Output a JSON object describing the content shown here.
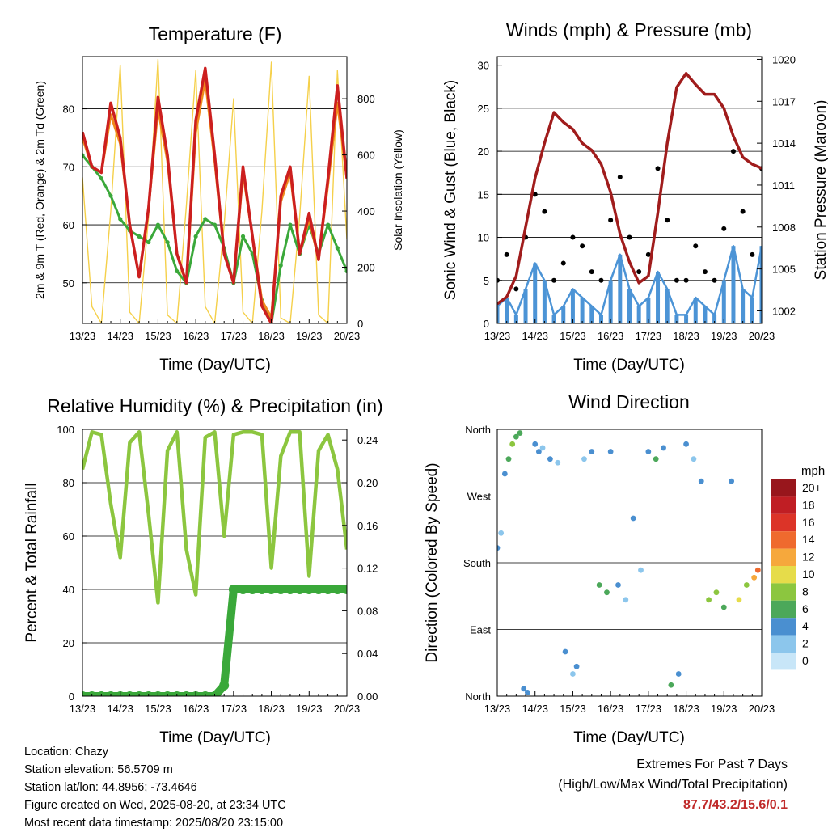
{
  "colors": {
    "temp_2m": "#cc1f1f",
    "temp_9m": "#f08a1c",
    "dewpoint": "#3aa83a",
    "solar": "#f5d04a",
    "sonic_wind": "#4c94d6",
    "gust": "#000000",
    "pressure": "#a01c1c",
    "rh": "#8cc63f",
    "precip": "#3aa83a",
    "extremes": "#c02a2a"
  },
  "x_ticks": [
    "13/23",
    "14/23",
    "15/23",
    "16/23",
    "17/23",
    "18/23",
    "19/23",
    "20/23"
  ],
  "panels": {
    "temperature": {
      "title": "Temperature (F)",
      "xlabel": "Time (Day/UTC)",
      "ylabel": "2m & 9m T (Red, Orange) & 2m Td (Green)",
      "ylabel_right": "Solar Insolation (Yellow)"
    },
    "winds": {
      "title": "Winds (mph) & Pressure (mb)",
      "xlabel": "Time (Day/UTC)",
      "ylabel": "Sonic Wind & Gust (Blue, Black)",
      "ylabel_right": "Station Pressure (Maroon)"
    },
    "humidity": {
      "title": "Relative Humidity (%) & Precipitation (in)",
      "xlabel": "Time (Day/UTC)",
      "ylabel": "Percent & Total Rainfall"
    },
    "direction": {
      "title": "Wind Direction",
      "xlabel": "Time (Day/UTC)",
      "ylabel": "Direction (Colored By Speed)",
      "colorbar_title": "mph"
    }
  },
  "chart_data": [
    {
      "type": "line",
      "title": "Temperature (F)",
      "xlabel": "Time (Day/UTC)",
      "ylabel": "2m & 9m T (Red, Orange) & 2m Td (Green)",
      "ylabel_right": "Solar Insolation (Yellow)",
      "x": [
        13.0,
        13.25,
        13.5,
        13.75,
        14.0,
        14.25,
        14.5,
        14.75,
        15.0,
        15.25,
        15.5,
        15.75,
        16.0,
        16.25,
        16.5,
        16.75,
        17.0,
        17.25,
        17.5,
        17.75,
        18.0,
        18.25,
        18.5,
        18.75,
        19.0,
        19.25,
        19.5,
        19.75,
        20.0
      ],
      "ylim": [
        43,
        89
      ],
      "yticks": [
        50,
        60,
        70,
        80
      ],
      "ylim_right": [
        0,
        950
      ],
      "yticks_right": [
        0,
        200,
        400,
        600,
        800
      ],
      "grid": true,
      "series": [
        {
          "axis": "left",
          "values": [
            76,
            70,
            69,
            81,
            75,
            60,
            51,
            63,
            82,
            72,
            55,
            50,
            78,
            87,
            72,
            55,
            50,
            70,
            58,
            46,
            43,
            65,
            70,
            55,
            62,
            54,
            68,
            84,
            68
          ]
        },
        {
          "axis": "left",
          "values": [
            75,
            70,
            69,
            79,
            74,
            60,
            51,
            63,
            80,
            71,
            55,
            50,
            76,
            85,
            71,
            55,
            50,
            69,
            58,
            47,
            44,
            64,
            69,
            55,
            61,
            54,
            67,
            81,
            68
          ]
        },
        {
          "axis": "left",
          "values": [
            72,
            70,
            68,
            65,
            61,
            59,
            58,
            57,
            60,
            57,
            52,
            50,
            58,
            61,
            60,
            56,
            50,
            58,
            55,
            47,
            43,
            53,
            60,
            55,
            60,
            55,
            60,
            56,
            52
          ]
        },
        {
          "axis": "right",
          "values": [
            520,
            60,
            0,
            400,
            920,
            40,
            0,
            380,
            940,
            30,
            0,
            420,
            900,
            60,
            0,
            350,
            800,
            40,
            0,
            400,
            930,
            20,
            0,
            380,
            880,
            30,
            0,
            900,
            300
          ]
        }
      ]
    },
    {
      "type": "scatter",
      "title": "Winds (mph) & Pressure (mb)",
      "xlabel": "Time (Day/UTC)",
      "ylabel": "Sonic Wind & Gust (Blue, Black)",
      "ylabel_right": "Station Pressure (Maroon)",
      "x": [
        13.0,
        13.25,
        13.5,
        13.75,
        14.0,
        14.25,
        14.5,
        14.75,
        15.0,
        15.25,
        15.5,
        15.75,
        16.0,
        16.25,
        16.5,
        16.75,
        17.0,
        17.25,
        17.5,
        17.75,
        18.0,
        18.25,
        18.5,
        18.75,
        19.0,
        19.25,
        19.5,
        19.75,
        20.0
      ],
      "ylim": [
        0,
        31
      ],
      "yticks": [
        0,
        5,
        10,
        15,
        20,
        25,
        30
      ],
      "ylim_right": [
        1001.1,
        1020.2
      ],
      "yticks_right": [
        1002,
        1005,
        1008,
        1011,
        1014,
        1017,
        1020
      ],
      "grid": true,
      "series": [
        {
          "axis": "left",
          "values": [
            2,
            3,
            1,
            4,
            7,
            5,
            1,
            2,
            4,
            3,
            2,
            1,
            5,
            8,
            4,
            2,
            3,
            6,
            4,
            1,
            1,
            3,
            2,
            1,
            5,
            9,
            4,
            3,
            9
          ]
        },
        {
          "axis": "left",
          "values": [
            5,
            8,
            4,
            10,
            15,
            13,
            5,
            7,
            10,
            9,
            6,
            5,
            12,
            17,
            10,
            6,
            8,
            18,
            12,
            5,
            5,
            9,
            6,
            5,
            11,
            20,
            13,
            8,
            18
          ]
        },
        {
          "axis": "right",
          "values": [
            1002.5,
            1003.0,
            1004.5,
            1008.0,
            1011.5,
            1014.0,
            1016.2,
            1015.5,
            1015.0,
            1014.0,
            1013.5,
            1012.5,
            1010.5,
            1007.5,
            1005.5,
            1004.0,
            1004.5,
            1009.0,
            1014.0,
            1018.0,
            1019.0,
            1018.2,
            1017.5,
            1017.5,
            1016.5,
            1014.5,
            1013.0,
            1012.5,
            1012.2
          ]
        }
      ]
    },
    {
      "type": "line",
      "title": "Relative Humidity (%) & Precipitation (in)",
      "xlabel": "Time (Day/UTC)",
      "ylabel": "Percent & Total Rainfall",
      "x": [
        13.0,
        13.25,
        13.5,
        13.75,
        14.0,
        14.25,
        14.5,
        14.75,
        15.0,
        15.25,
        15.5,
        15.75,
        16.0,
        16.25,
        16.5,
        16.75,
        17.0,
        17.25,
        17.5,
        17.75,
        18.0,
        18.25,
        18.5,
        18.75,
        19.0,
        19.25,
        19.5,
        19.75,
        20.0
      ],
      "ylim": [
        0,
        100
      ],
      "yticks": [
        0,
        20,
        40,
        60,
        80,
        100
      ],
      "ylim_right": [
        0,
        0.25
      ],
      "yticks_right": [
        0.0,
        0.04,
        0.08,
        0.12,
        0.16,
        0.2,
        0.24
      ],
      "grid": true,
      "series": [
        {
          "axis": "left",
          "values": [
            85,
            99,
            98,
            72,
            52,
            95,
            99,
            68,
            35,
            92,
            99,
            55,
            38,
            97,
            99,
            60,
            98,
            99,
            99,
            98,
            48,
            90,
            99,
            99,
            45,
            92,
            98,
            85,
            55
          ]
        },
        {
          "axis": "right",
          "values": [
            0,
            0,
            0,
            0,
            0,
            0,
            0,
            0,
            0,
            0,
            0,
            0,
            0,
            0,
            0,
            0.01,
            0.1,
            0.1,
            0.1,
            0.1,
            0.1,
            0.1,
            0.1,
            0.1,
            0.1,
            0.1,
            0.1,
            0.1,
            0.1
          ]
        }
      ]
    },
    {
      "type": "scatter",
      "title": "Wind Direction",
      "xlabel": "Time (Day/UTC)",
      "ylabel": "Direction (Colored By Speed)",
      "y_categories": [
        "North",
        "East",
        "South",
        "West",
        "North"
      ],
      "ylim": [
        0,
        360
      ],
      "colorbar": {
        "title": "mph",
        "labels": [
          "20+",
          "18",
          "16",
          "14",
          "12",
          "10",
          "8",
          "6",
          "4",
          "2",
          "0"
        ]
      },
      "x": [
        13.0,
        13.1,
        13.2,
        13.3,
        13.4,
        13.5,
        13.6,
        13.7,
        13.8,
        14.0,
        14.1,
        14.2,
        14.4,
        14.6,
        14.8,
        15.0,
        15.1,
        15.3,
        15.5,
        15.7,
        15.9,
        16.0,
        16.2,
        16.4,
        16.6,
        16.8,
        17.0,
        17.2,
        17.4,
        17.6,
        17.8,
        18.0,
        18.2,
        18.4,
        18.6,
        18.8,
        19.0,
        19.2,
        19.4,
        19.6,
        19.8,
        19.9
      ],
      "y": [
        200,
        220,
        300,
        320,
        340,
        350,
        355,
        10,
        5,
        340,
        330,
        335,
        320,
        315,
        60,
        30,
        40,
        320,
        330,
        150,
        140,
        330,
        150,
        130,
        240,
        170,
        330,
        320,
        335,
        15,
        30,
        340,
        320,
        290,
        130,
        140,
        120,
        290,
        130,
        150,
        160,
        170
      ],
      "speed": [
        3,
        2,
        4,
        5,
        7,
        6,
        5,
        4,
        3,
        4,
        3,
        2,
        3,
        2,
        4,
        2,
        3,
        2,
        3,
        6,
        5,
        3,
        4,
        2,
        3,
        2,
        3,
        5,
        4,
        6,
        4,
        3,
        2,
        3,
        8,
        7,
        6,
        3,
        9,
        8,
        12,
        14
      ]
    }
  ],
  "footer": {
    "location": "Location: Chazy",
    "elevation": "Station elevation: 56.5709 m",
    "latlon": "Station lat/lon: 44.8956; -73.4646",
    "created": "Figure created on Wed, 2025-08-20, at 23:34 UTC",
    "recent": "Most recent data timestamp: 2025/08/20 23:15:00",
    "extremes_title": "Extremes For Past 7 Days",
    "extremes_sub": "(High/Low/Max Wind/Total Precipitation)",
    "extremes_values": "87.7/43.2/15.6/0.1"
  }
}
